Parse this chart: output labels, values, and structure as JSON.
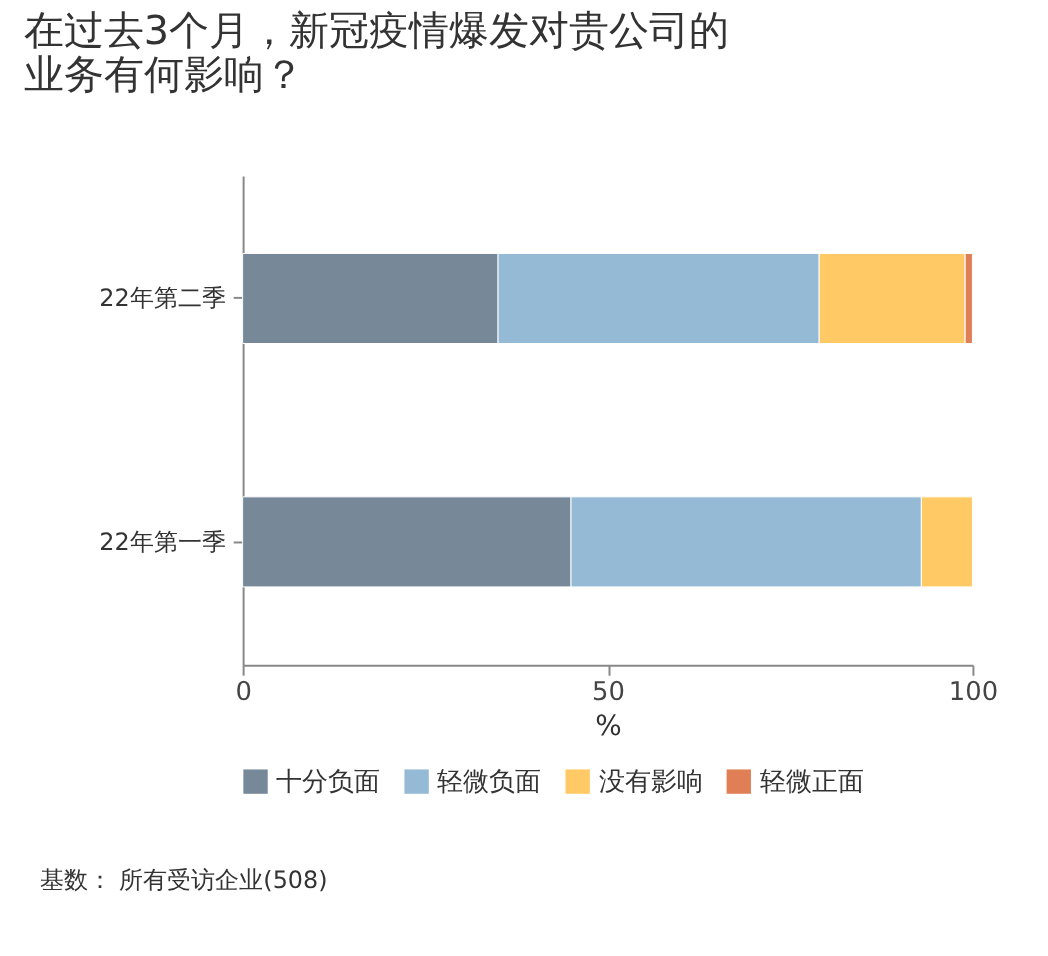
{
  "chart_data": {
    "type": "bar",
    "orientation": "horizontal",
    "stacked": true,
    "title": [
      "在过去3个月，新冠疫情爆发对贵公司的",
      "业务有何影响？"
    ],
    "xlabel": "%",
    "categories": [
      "22年第二季",
      "22年第一季"
    ],
    "series": [
      {
        "name": "十分负面",
        "color": "#778899",
        "values": [
          35,
          45
        ]
      },
      {
        "name": "轻微负面",
        "color": "#94bad5",
        "values": [
          44,
          48
        ]
      },
      {
        "name": "没有影响",
        "color": "#ffca65",
        "values": [
          20,
          7
        ]
      },
      {
        "name": "轻微正面",
        "color": "#e07f55",
        "values": [
          1,
          null
        ]
      }
    ],
    "xlim": [
      0,
      100
    ],
    "xticks": [
      0,
      50,
      100
    ],
    "grid": false,
    "legend": "bottom",
    "annotations": [
      "基数： 所有受访企业(508)"
    ]
  }
}
